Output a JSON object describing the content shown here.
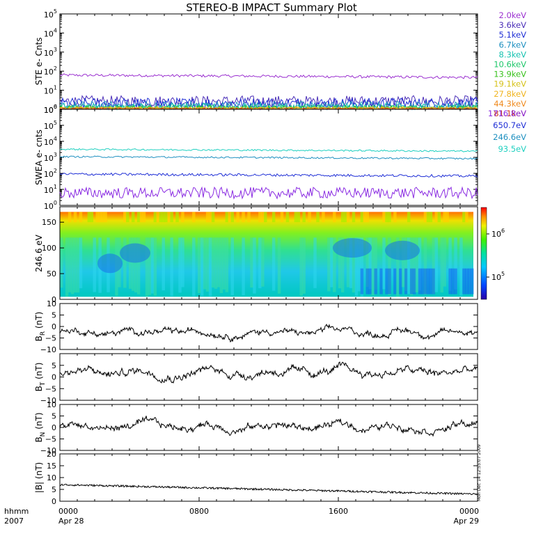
{
  "chart_data": [
    {
      "type": "line",
      "title": "STEREO-B IMPACT Summary Plot",
      "ylabel": "STE e- Cnts",
      "yscale": "log",
      "ylim": [
        1,
        100000
      ],
      "x_range_hours": [
        0,
        24
      ],
      "legend_placement": "right",
      "series": [
        {
          "name": "2.0keV",
          "color": "#9b30d0",
          "level": 62,
          "noise": 0.07
        },
        {
          "name": "3.6keV",
          "color": "#4b2fb8",
          "level": 2.6,
          "noise": 0.3
        },
        {
          "name": "5.1keV",
          "color": "#1f2fd6",
          "level": 2.0,
          "noise": 0.3
        },
        {
          "name": "6.7keV",
          "color": "#1e90c0",
          "level": 1.5,
          "noise": 0.25
        },
        {
          "name": "8.3keV",
          "color": "#16c2b0",
          "level": 1.3,
          "noise": 0.2
        },
        {
          "name": "10.6keV",
          "color": "#1ec76a",
          "level": 1.2,
          "noise": 0.15
        },
        {
          "name": "13.9keV",
          "color": "#3ac21e",
          "level": 1.15,
          "noise": 0.12
        },
        {
          "name": "19.1keV",
          "color": "#d6c21a",
          "level": 1.1,
          "noise": 0.1
        },
        {
          "name": "27.8keV",
          "color": "#f0b41e",
          "level": 1.08,
          "noise": 0.08
        },
        {
          "name": "44.3keV",
          "color": "#f08a1e",
          "level": 1.05,
          "noise": 0.08
        },
        {
          "name": "81.1keV",
          "color": "#d03a1e",
          "level": 1.03,
          "noise": 0.05
        }
      ]
    },
    {
      "type": "line",
      "ylabel": "SWEA e- cnts",
      "yscale": "log",
      "ylim": [
        1,
        1000000
      ],
      "x_range_hours": [
        0,
        24
      ],
      "legend_placement": "right",
      "series": [
        {
          "name": "1716.8eV",
          "color": "#8a2be2",
          "level": 6,
          "noise": 0.35
        },
        {
          "name": "650.7eV",
          "color": "#1f2fd6",
          "level": 90,
          "noise": 0.08
        },
        {
          "name": "246.6eV",
          "color": "#1e90c0",
          "level": 1100,
          "noise": 0.05
        },
        {
          "name": "93.5eV",
          "color": "#20d0c0",
          "level": 3200,
          "noise": 0.05
        }
      ]
    },
    {
      "type": "heatmap",
      "ylabel": "246.6 eV",
      "ylim": [
        0,
        180
      ],
      "yticks": [
        "0",
        "50",
        "100",
        "150"
      ],
      "colorbar_scale": "log",
      "colorbar_ticks": [
        "10",
        "10"
      ],
      "colorbar_exponents": [
        "6",
        "5"
      ]
    },
    {
      "type": "line",
      "ylabel": "B",
      "ylabel_sub": "R",
      "ylabel_unit": "(nT)",
      "ylim": [
        -10,
        10
      ],
      "yticks": [
        "−10",
        "−5",
        "0",
        "5",
        "10"
      ],
      "mean": -2.5,
      "amp": 2.6
    },
    {
      "type": "line",
      "ylabel": "B",
      "ylabel_sub": "T",
      "ylabel_unit": "(nT)",
      "ylim": [
        -10,
        10
      ],
      "yticks": [
        "−10",
        "−5",
        "0",
        "5"
      ],
      "mean": 2.0,
      "amp": 3.2
    },
    {
      "type": "line",
      "ylabel": "B",
      "ylabel_sub": "N",
      "ylabel_unit": "(nT)",
      "ylim": [
        -10,
        10
      ],
      "yticks": [
        "−10",
        "−5",
        "0",
        "5",
        "10"
      ],
      "mean": 0.5,
      "amp": 3.0
    },
    {
      "type": "line",
      "ylabel": "|B| (nT)",
      "ylim": [
        0,
        20
      ],
      "yticks": [
        "0",
        "5",
        "10",
        "15",
        "20"
      ],
      "start": 7.0,
      "end": 3.0
    }
  ],
  "time_axis": {
    "label_line1": "hhmm",
    "label_line2": "2007",
    "ticks": [
      {
        "hours": 0,
        "time": "0000",
        "date": "Apr 28"
      },
      {
        "hours": 8,
        "time": "0800",
        "date": ""
      },
      {
        "hours": 16,
        "time": "1600",
        "date": ""
      },
      {
        "hours": 24,
        "time": "0000",
        "date": "Apr 29"
      }
    ]
  },
  "side_text": "Mon Dec 14 12:55:07 2009"
}
